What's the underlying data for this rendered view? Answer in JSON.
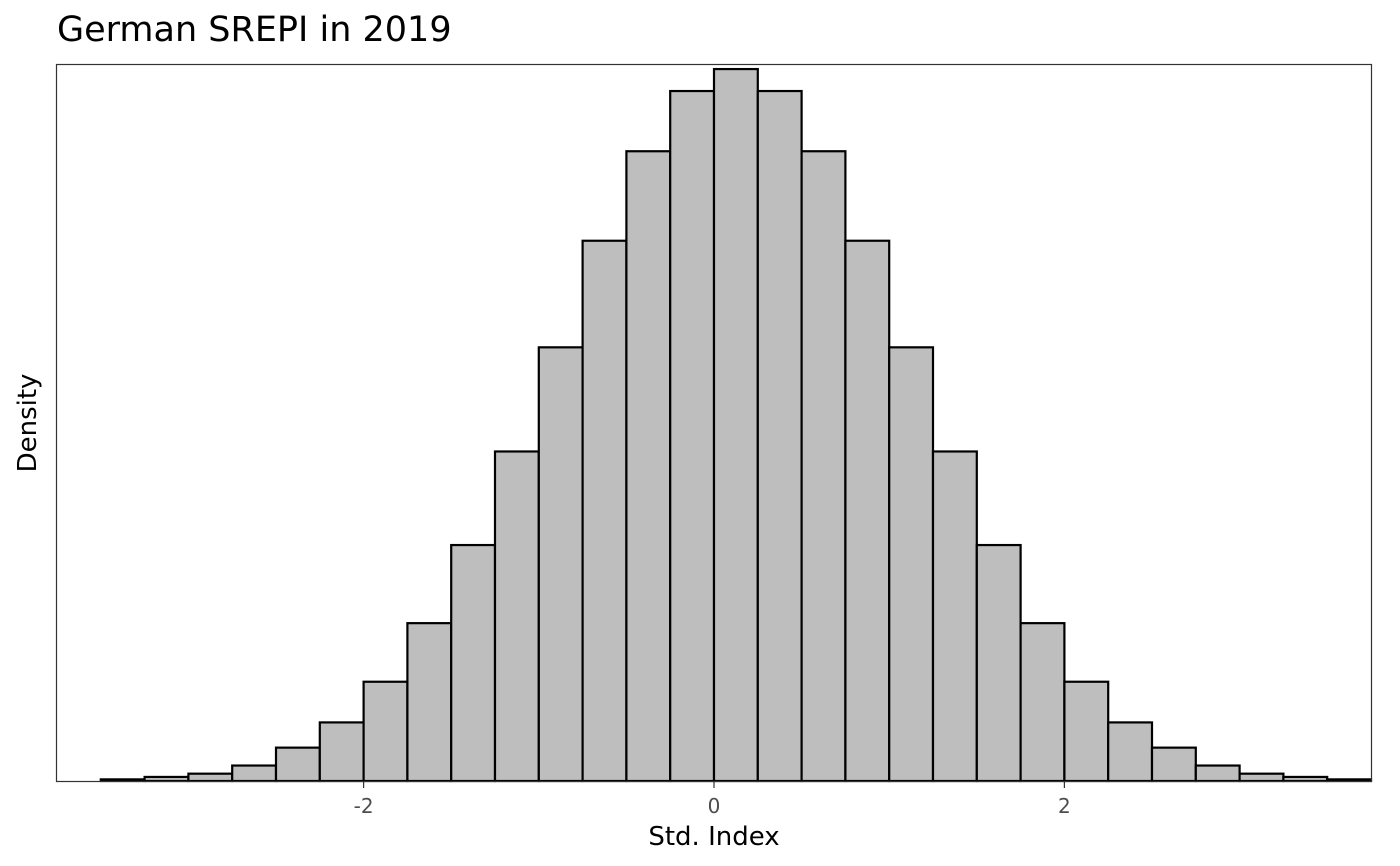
{
  "chart_data": {
    "type": "bar",
    "subtype": "histogram",
    "title": "German SREPI in 2019",
    "xlabel": "Std. Index",
    "ylabel": "Density",
    "x_ticks": [
      "-2",
      "0",
      "2"
    ],
    "y_ticks": [],
    "xlim": [
      -3.75,
      3.75
    ],
    "ylim": [
      0,
      0.88
    ],
    "bin_width": 0.25,
    "bins": [
      {
        "x0": -3.5,
        "x1": -3.25,
        "value": 0.002
      },
      {
        "x0": -3.25,
        "x1": -3.0,
        "value": 0.005
      },
      {
        "x0": -3.0,
        "x1": -2.75,
        "value": 0.009
      },
      {
        "x0": -2.75,
        "x1": -2.5,
        "value": 0.019
      },
      {
        "x0": -2.5,
        "x1": -2.25,
        "value": 0.041
      },
      {
        "x0": -2.25,
        "x1": -2.0,
        "value": 0.072
      },
      {
        "x0": -2.0,
        "x1": -1.75,
        "value": 0.122
      },
      {
        "x0": -1.75,
        "x1": -1.5,
        "value": 0.194
      },
      {
        "x0": -1.5,
        "x1": -1.25,
        "value": 0.29
      },
      {
        "x0": -1.25,
        "x1": -1.0,
        "value": 0.405
      },
      {
        "x0": -1.0,
        "x1": -0.75,
        "value": 0.533
      },
      {
        "x0": -0.75,
        "x1": -0.5,
        "value": 0.664
      },
      {
        "x0": -0.5,
        "x1": -0.25,
        "value": 0.774
      },
      {
        "x0": -0.25,
        "x1": 0.0,
        "value": 0.848
      },
      {
        "x0": 0.0,
        "x1": 0.25,
        "value": 0.875
      },
      {
        "x0": 0.25,
        "x1": 0.5,
        "value": 0.848
      },
      {
        "x0": 0.5,
        "x1": 0.75,
        "value": 0.774
      },
      {
        "x0": 0.75,
        "x1": 1.0,
        "value": 0.664
      },
      {
        "x0": 1.0,
        "x1": 1.25,
        "value": 0.533
      },
      {
        "x0": 1.25,
        "x1": 1.5,
        "value": 0.405
      },
      {
        "x0": 1.5,
        "x1": 1.75,
        "value": 0.29
      },
      {
        "x0": 1.75,
        "x1": 2.0,
        "value": 0.194
      },
      {
        "x0": 2.0,
        "x1": 2.25,
        "value": 0.122
      },
      {
        "x0": 2.25,
        "x1": 2.5,
        "value": 0.072
      },
      {
        "x0": 2.5,
        "x1": 2.75,
        "value": 0.041
      },
      {
        "x0": 2.75,
        "x1": 3.0,
        "value": 0.019
      },
      {
        "x0": 3.0,
        "x1": 3.25,
        "value": 0.009
      },
      {
        "x0": 3.25,
        "x1": 3.5,
        "value": 0.005
      },
      {
        "x0": 3.5,
        "x1": 3.75,
        "value": 0.002
      }
    ],
    "grid": false,
    "legend": "none",
    "colors": {
      "bar_fill": "#bebebe",
      "bar_stroke": "#000000",
      "panel_border": "#333333",
      "tick_text": "#4d4d4d",
      "text": "#000000"
    }
  }
}
